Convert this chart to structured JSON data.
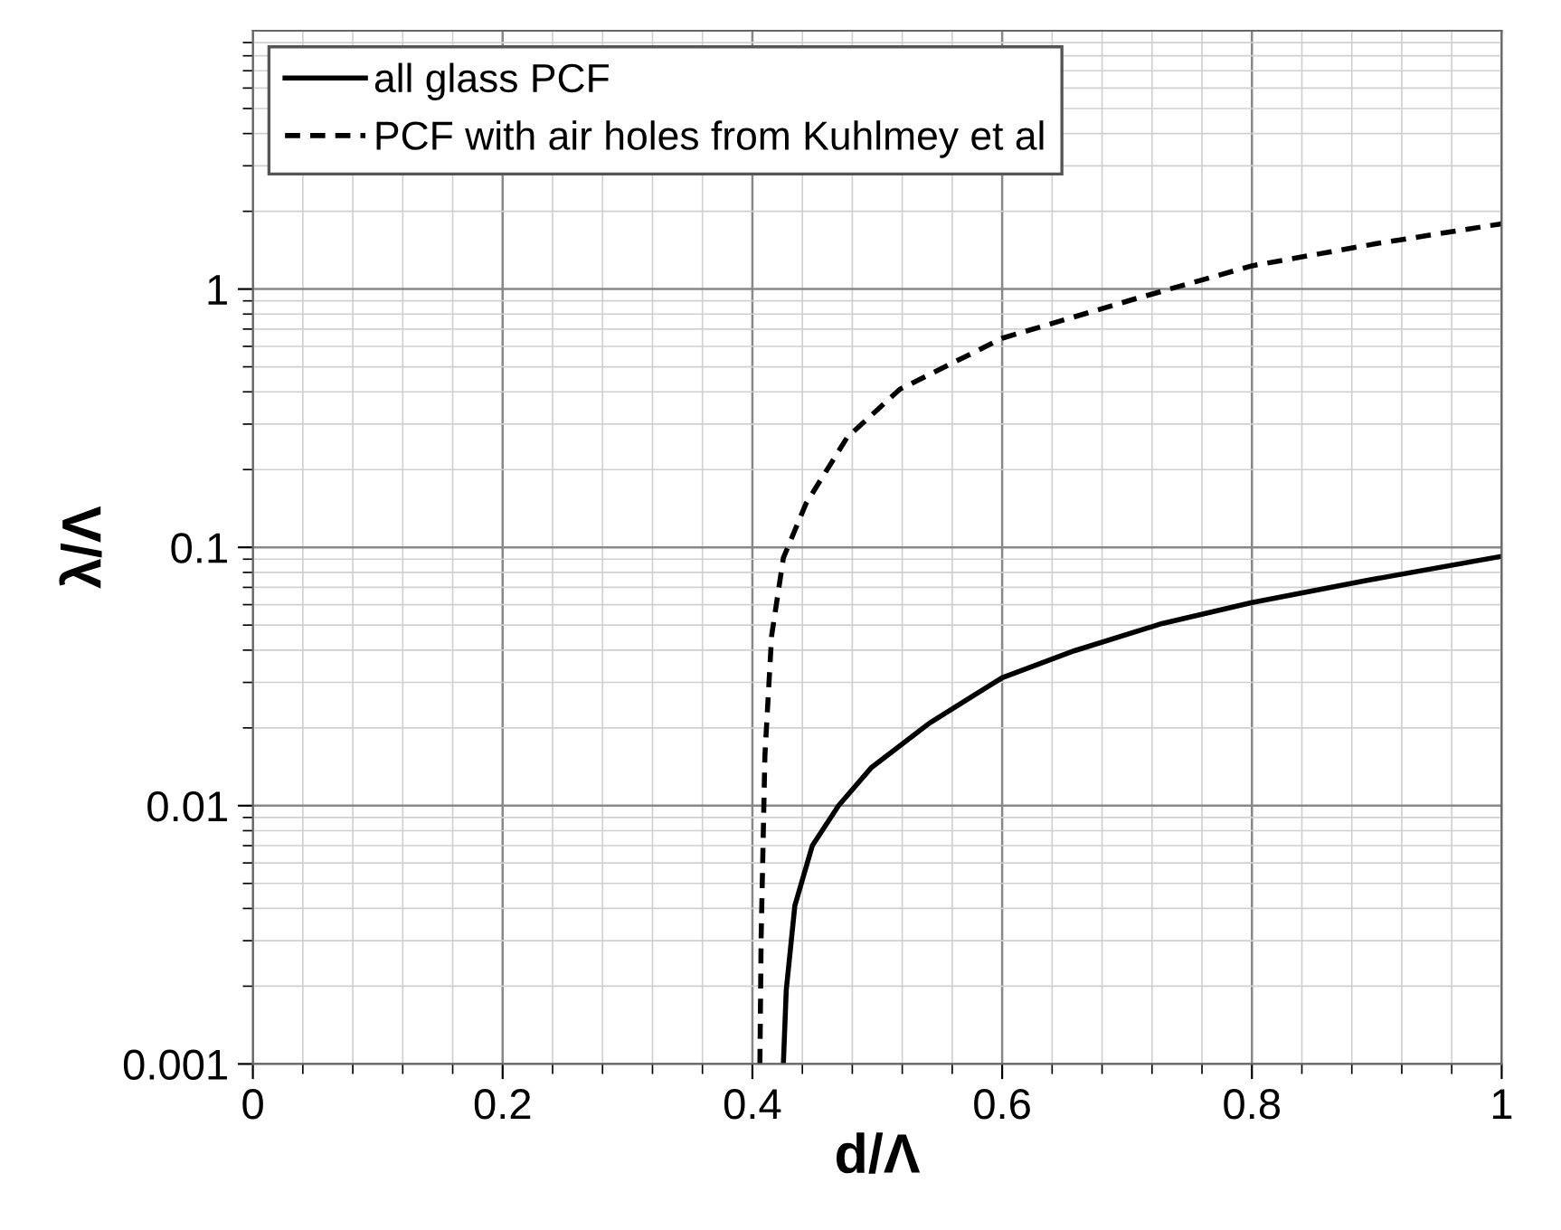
{
  "chart_data": {
    "type": "line",
    "xlabel": "d/Λ",
    "ylabel": "λ/Λ",
    "log": "y",
    "grid": true,
    "legend": "top left",
    "xlim": [
      0,
      1
    ],
    "ylim": [
      0.001,
      10
    ],
    "xticks": [
      0,
      0.2,
      0.4,
      0.6,
      0.8,
      1
    ],
    "yticks": [
      0.001,
      0.01,
      0.1,
      1
    ],
    "series": [
      {
        "name": "all glass PCF",
        "color": "#000000",
        "line_style": "solid",
        "x": [
          0.4248,
          0.4271,
          0.434,
          0.448,
          0.469,
          0.495,
          0.542,
          0.6,
          0.658,
          0.728,
          0.8,
          0.892,
          1.0
        ],
        "values": [
          0.001,
          0.00193,
          0.0041,
          0.007,
          0.01,
          0.014,
          0.0209,
          0.0313,
          0.0398,
          0.0507,
          0.0611,
          0.0745,
          0.0923
        ]
      },
      {
        "name": "PCF with air holes from Kuhlmey et al",
        "color": "#000000",
        "line_style": "dashed",
        "x": [
          0.406,
          0.407,
          0.41,
          0.4154,
          0.4248,
          0.443,
          0.476,
          0.518,
          0.6,
          0.705,
          0.8,
          0.9,
          1.0
        ],
        "values": [
          0.001,
          0.0031,
          0.0156,
          0.0455,
          0.091,
          0.148,
          0.267,
          0.409,
          0.645,
          0.912,
          1.23,
          1.5,
          1.79
        ]
      }
    ]
  }
}
